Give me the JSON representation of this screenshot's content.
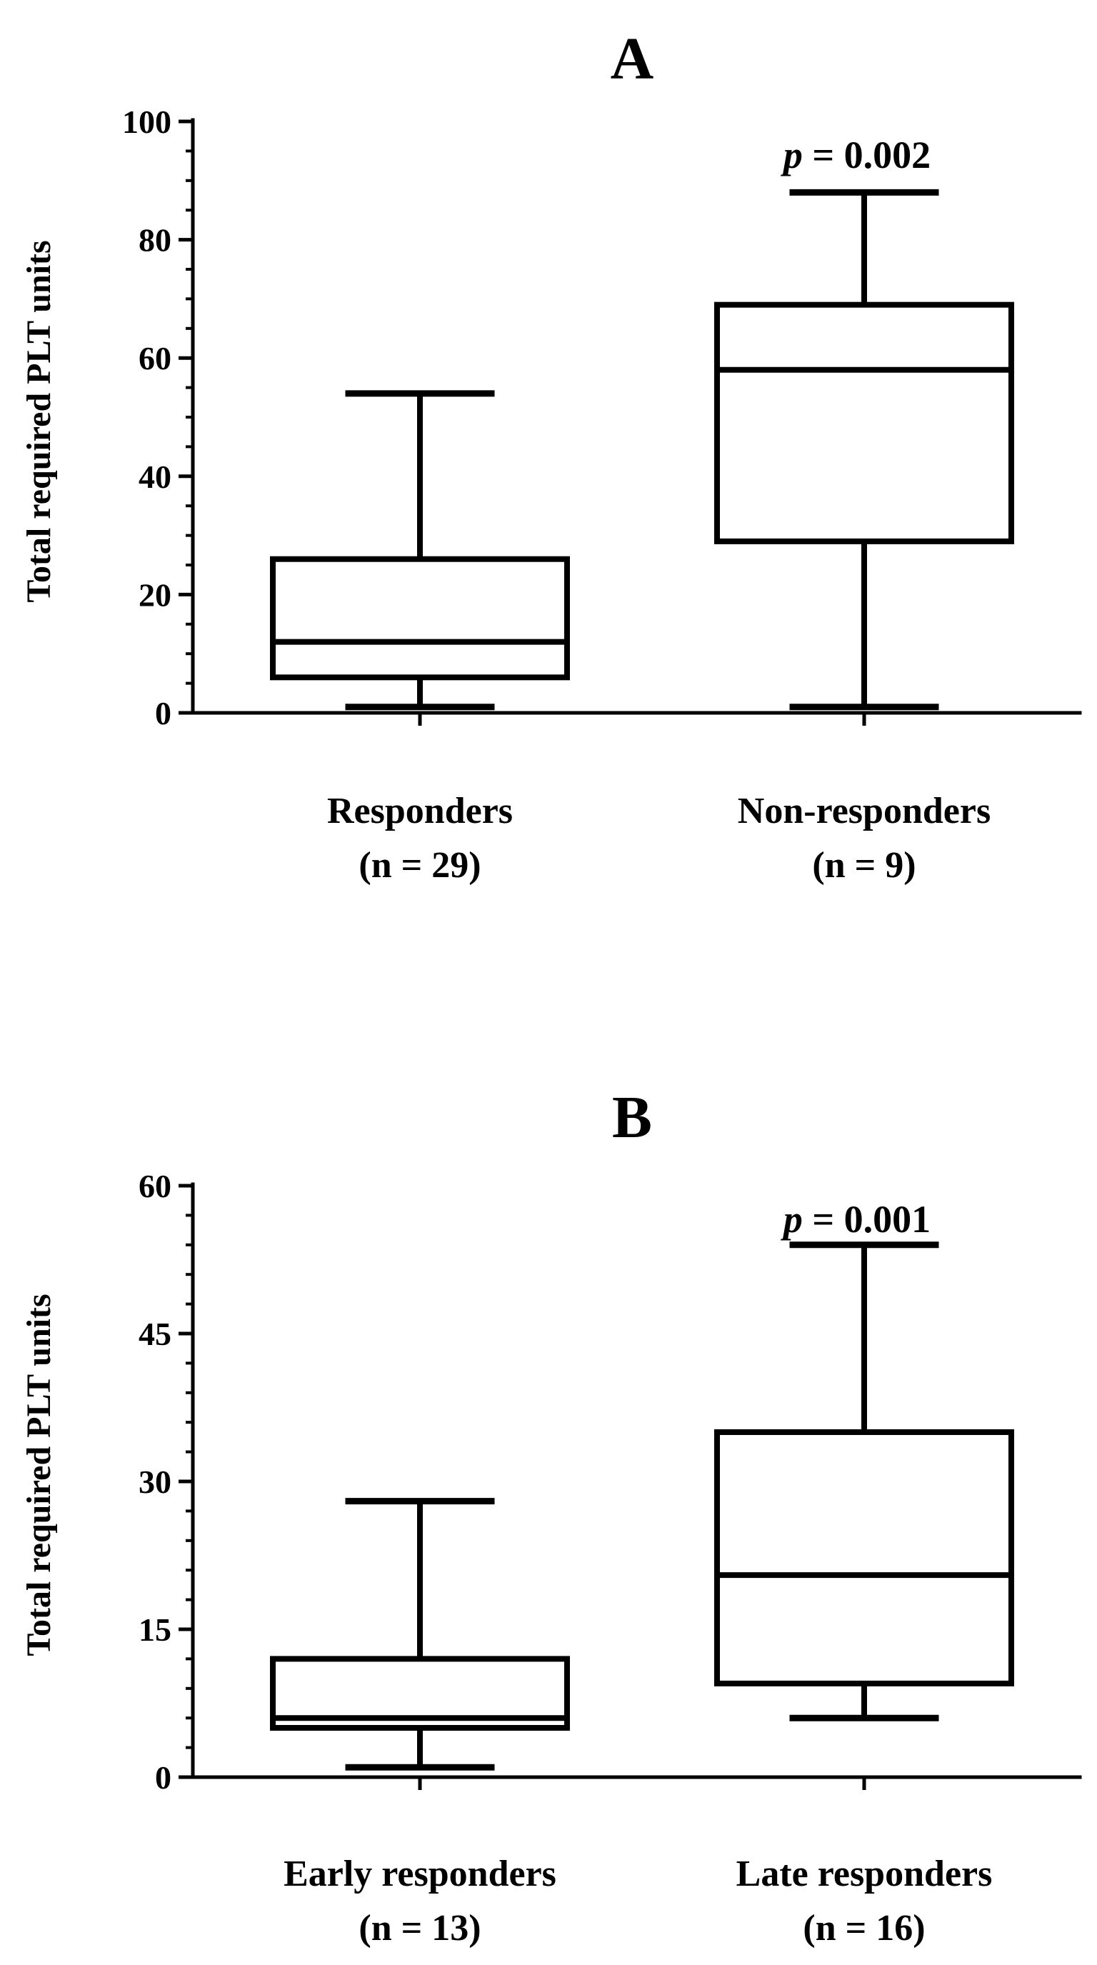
{
  "chart_data": [
    {
      "type": "box",
      "title": "A",
      "ylabel": "Total required PLT units",
      "ylim": [
        0,
        100
      ],
      "yticks": [
        0,
        20,
        40,
        60,
        80,
        100
      ],
      "annotation": {
        "p_symbol": "p",
        "p_text": " = 0.002"
      },
      "categories": [
        {
          "name": "Responders",
          "n_label": "(n = 29)",
          "min": 1,
          "q1": 6,
          "median": 12,
          "q3": 26,
          "max": 54
        },
        {
          "name": "Non-responders",
          "n_label": "(n = 9)",
          "min": 1,
          "q1": 29,
          "median": 58,
          "q3": 69,
          "max": 88
        }
      ]
    },
    {
      "type": "box",
      "title": "B",
      "ylabel": "Total required PLT units",
      "ylim": [
        0,
        60
      ],
      "yticks": [
        0,
        15,
        30,
        45,
        60
      ],
      "annotation": {
        "p_symbol": "p",
        "p_text": " = 0.001"
      },
      "categories": [
        {
          "name": "Early responders",
          "n_label": "(n = 13)",
          "min": 1,
          "q1": 5,
          "median": 6,
          "q3": 12,
          "max": 28
        },
        {
          "name": "Late responders",
          "n_label": "(n = 16)",
          "min": 6,
          "q1": 9.5,
          "median": 20.5,
          "q3": 35,
          "max": 54
        }
      ]
    }
  ]
}
